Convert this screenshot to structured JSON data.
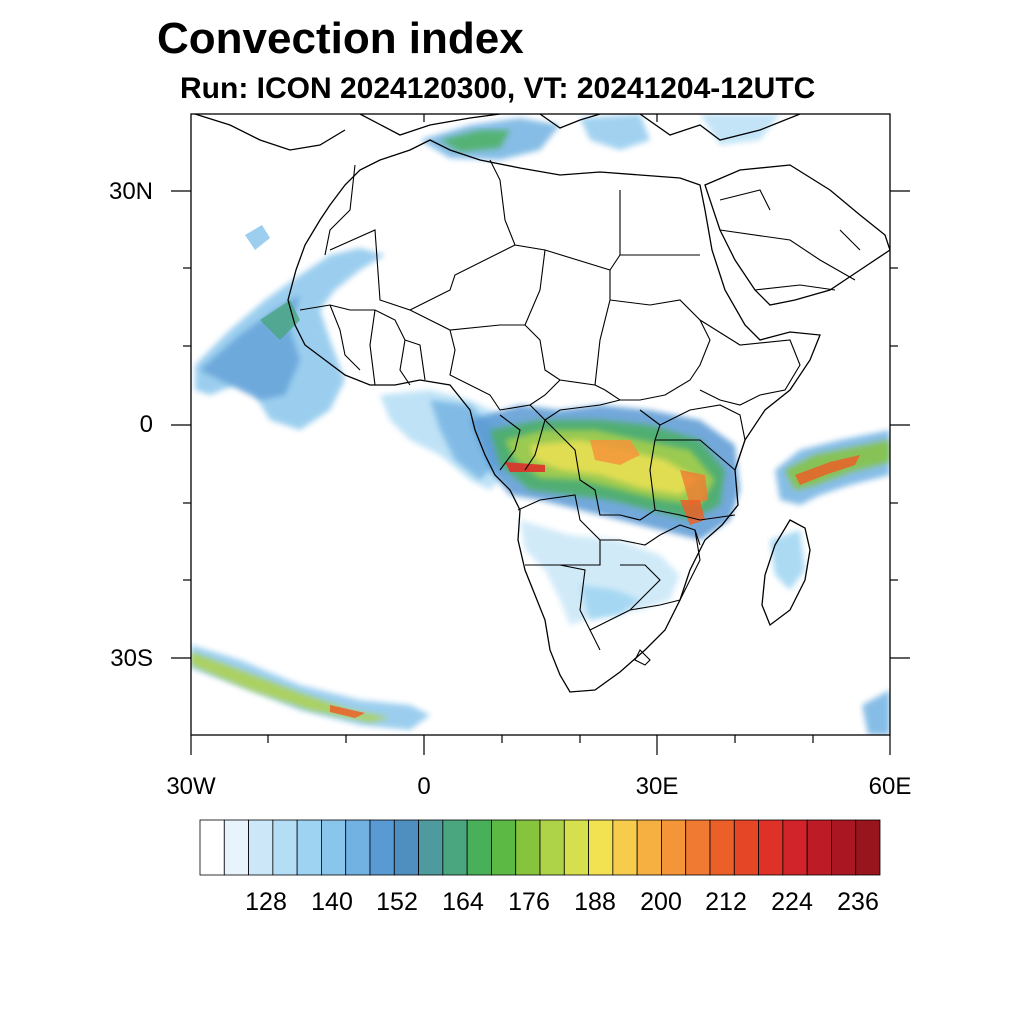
{
  "header": {
    "title": "Convection index",
    "subtitle": "Run: ICON 2024120300,  VT: 20241204-12UTC"
  },
  "axes": {
    "lat_labels": [
      "30N",
      "0",
      "30S"
    ],
    "lon_labels": [
      "30W",
      "0",
      "30E",
      "60E"
    ]
  },
  "map": {
    "lon_range": [
      -30,
      60
    ],
    "lat_range": [
      -40,
      40
    ],
    "features": [
      "coastlines",
      "country-borders",
      "convection-index-shading"
    ]
  },
  "colorbar": {
    "labels": [
      "128",
      "140",
      "152",
      "164",
      "176",
      "188",
      "200",
      "212",
      "224",
      "236"
    ],
    "colors": [
      "#ffffff",
      "#e8f4fc",
      "#cce8f8",
      "#b4def5",
      "#9ed4f2",
      "#8ac6ec",
      "#72b2e2",
      "#5a9ad4",
      "#4f8fbf",
      "#4f9a9e",
      "#4aa67e",
      "#49b05a",
      "#5bb944",
      "#86c43e",
      "#aed248",
      "#d6e04e",
      "#f2e252",
      "#f7cb4c",
      "#f6b042",
      "#f5953a",
      "#f07a32",
      "#eb6028",
      "#e44626",
      "#de3128",
      "#d0232a",
      "#bd1c26",
      "#aa1722",
      "#98151e"
    ]
  }
}
